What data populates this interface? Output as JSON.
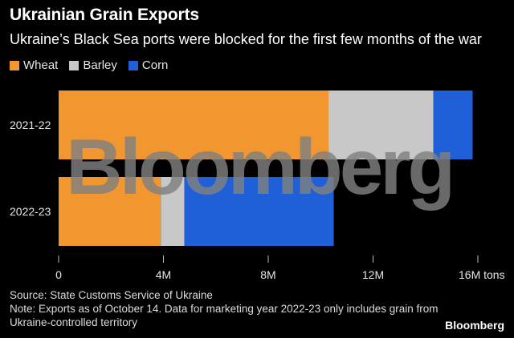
{
  "header": {
    "title": "Ukrainian Grain Exports",
    "subtitle": "Ukraine’s Black Sea ports were blocked for the first few months of the war"
  },
  "legend": [
    {
      "label": "Wheat",
      "color": "#f2962f"
    },
    {
      "label": "Barley",
      "color": "#c8c8c8"
    },
    {
      "label": "Corn",
      "color": "#1f5fd8"
    }
  ],
  "chart_data": {
    "type": "bar",
    "orientation": "horizontal",
    "stacked": true,
    "categories": [
      "2021-22",
      "2022-23"
    ],
    "series": [
      {
        "name": "Wheat",
        "values": [
          10.3,
          3.9
        ]
      },
      {
        "name": "Barley",
        "values": [
          4.0,
          0.9
        ]
      },
      {
        "name": "Corn",
        "values": [
          1.5,
          5.7
        ]
      }
    ],
    "xlim": [
      0,
      16.5
    ],
    "xticks": [
      {
        "value": 0,
        "label": "0"
      },
      {
        "value": 4,
        "label": "4M"
      },
      {
        "value": 8,
        "label": "8M"
      },
      {
        "value": 12,
        "label": "12M"
      },
      {
        "value": 16,
        "label": "16M tons"
      }
    ],
    "grid": false,
    "legend_position": "top-left"
  },
  "footer": {
    "source": "Source: State Customs Service of Ukraine",
    "note": "Note: Exports as of October 14. Data for marketing year 2022-23 only includes grain from Ukraine-controlled territory"
  },
  "watermark": "Bloomberg",
  "brand": "Bloomberg"
}
